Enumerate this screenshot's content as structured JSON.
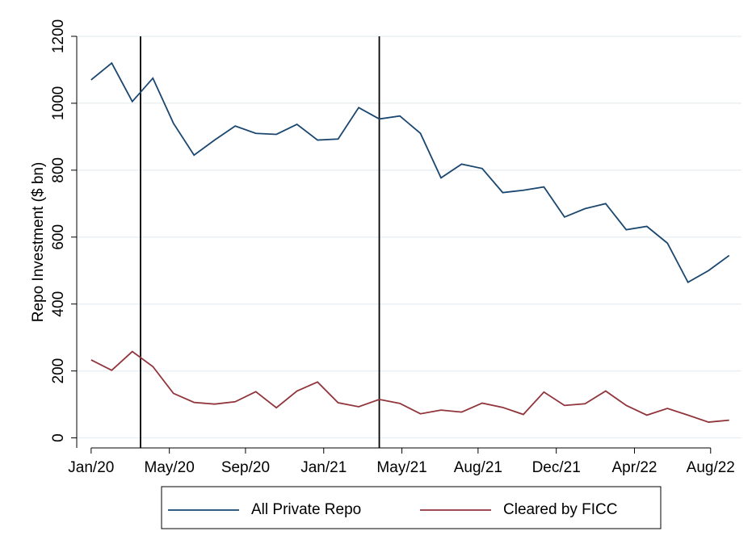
{
  "chart_data": {
    "type": "line",
    "y_label": "Repo Investment ($ bn)",
    "x": [
      0,
      1,
      2,
      3,
      4,
      5,
      6,
      7,
      8,
      9,
      10,
      11,
      12,
      13,
      14,
      15,
      16,
      17,
      18,
      19,
      20,
      21,
      22,
      23,
      24,
      25,
      26,
      27,
      28,
      29,
      30,
      31
    ],
    "xlim": [
      -0.7,
      31.6
    ],
    "xticks": [
      {
        "value": 0,
        "label": "Jan/20"
      },
      {
        "value": 3.8,
        "label": "May/20"
      },
      {
        "value": 7.5,
        "label": "Sep/20"
      },
      {
        "value": 11.3,
        "label": "Jan/21"
      },
      {
        "value": 15.1,
        "label": "May/21"
      },
      {
        "value": 18.8,
        "label": "Aug/21"
      },
      {
        "value": 22.6,
        "label": "Dec/21"
      },
      {
        "value": 26.4,
        "label": "Apr/22"
      },
      {
        "value": 30.1,
        "label": "Aug/22"
      }
    ],
    "ylim": [
      -30,
      1200
    ],
    "yticks": [
      0,
      200,
      400,
      600,
      800,
      1000,
      1200
    ],
    "grid": true,
    "vlines": [
      2.4,
      14
    ],
    "series": [
      {
        "name": "All Private Repo",
        "color": "#1a476f",
        "values": [
          1070,
          1120,
          1005,
          1075,
          940,
          845,
          890,
          932,
          910,
          907,
          937,
          890,
          893,
          987,
          953,
          962,
          910,
          777,
          818,
          805,
          733,
          740,
          750,
          660,
          685,
          700,
          622,
          632,
          582,
          465,
          500,
          545
        ]
      },
      {
        "name": "Cleared by FICC",
        "color": "#90353b",
        "values": [
          233,
          202,
          258,
          213,
          133,
          106,
          101,
          108,
          138,
          90,
          140,
          167,
          105,
          93,
          115,
          103,
          72,
          83,
          77,
          104,
          91,
          70,
          137,
          97,
          102,
          140,
          97,
          68,
          88,
          68,
          47,
          53
        ]
      }
    ]
  }
}
